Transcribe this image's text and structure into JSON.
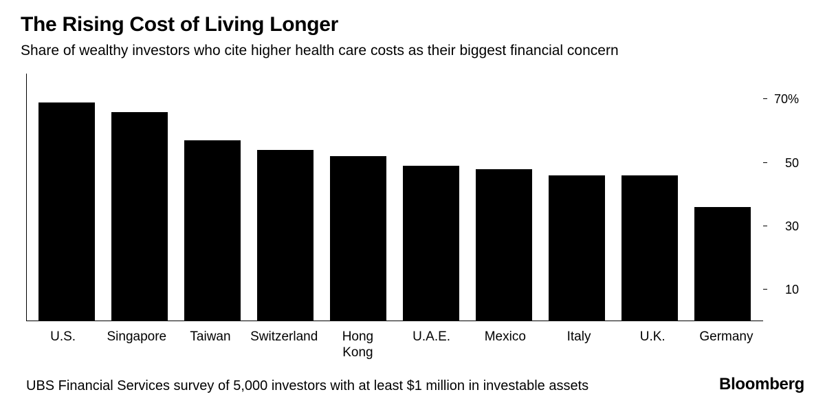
{
  "title": "The Rising Cost of Living Longer",
  "subtitle": "Share of wealthy investors who cite higher health care costs as their biggest financial concern",
  "source": "UBS Financial Services survey of 5,000 investors with at least $1 million in investable assets",
  "brand": "Bloomberg",
  "chart": {
    "type": "bar",
    "y_min": 0,
    "y_max": 78,
    "y_ticks": [
      {
        "value": 10,
        "label": "10"
      },
      {
        "value": 30,
        "label": "30"
      },
      {
        "value": 50,
        "label": "50"
      },
      {
        "value": 70,
        "label": "70%"
      }
    ],
    "bar_color": "#000000",
    "axis_color": "#000000",
    "background_color": "#ffffff",
    "bar_width_ratio": 0.78,
    "title_fontsize": 30,
    "subtitle_fontsize": 21,
    "axis_label_fontsize": 19,
    "source_fontsize": 20,
    "brand_fontsize": 24,
    "categories": [
      {
        "label": "U.S.",
        "value": 69
      },
      {
        "label": "Singapore",
        "value": 66
      },
      {
        "label": "Taiwan",
        "value": 57
      },
      {
        "label": "Switzerland",
        "value": 54
      },
      {
        "label": "Hong\nKong",
        "value": 52
      },
      {
        "label": "U.A.E.",
        "value": 49
      },
      {
        "label": "Mexico",
        "value": 48
      },
      {
        "label": "Italy",
        "value": 46
      },
      {
        "label": "U.K.",
        "value": 46
      },
      {
        "label": "Germany",
        "value": 36
      }
    ]
  }
}
